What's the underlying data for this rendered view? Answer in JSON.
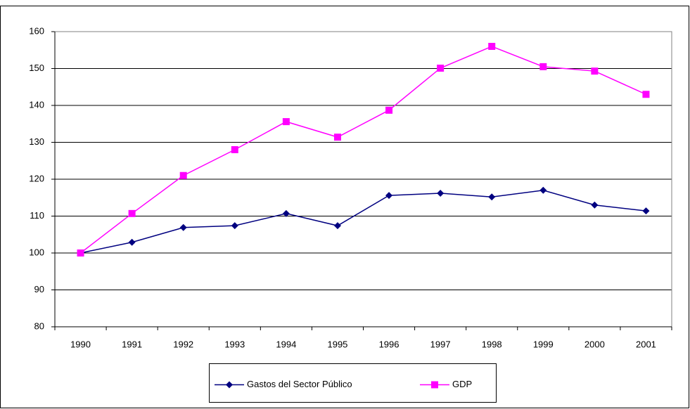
{
  "chart_data": {
    "type": "line",
    "categories": [
      "1990",
      "1991",
      "1992",
      "1993",
      "1994",
      "1995",
      "1996",
      "1997",
      "1998",
      "1999",
      "2000",
      "2001"
    ],
    "series": [
      {
        "name": "Gastos del Sector Público",
        "color": "#000080",
        "marker": "diamond",
        "values": [
          100,
          102.9,
          106.9,
          107.4,
          110.7,
          107.4,
          115.6,
          116.2,
          115.2,
          117.0,
          113.0,
          111.4
        ]
      },
      {
        "name": "GDP",
        "color": "#ff00ff",
        "marker": "square",
        "values": [
          100,
          110.7,
          121.0,
          128.0,
          135.6,
          131.4,
          138.7,
          150.1,
          156.0,
          150.5,
          149.3,
          143.0
        ]
      }
    ],
    "ylim": [
      80,
      160
    ],
    "yticks": [
      80,
      90,
      100,
      110,
      120,
      130,
      140,
      150,
      160
    ],
    "grid": true,
    "legend": "bottom"
  }
}
